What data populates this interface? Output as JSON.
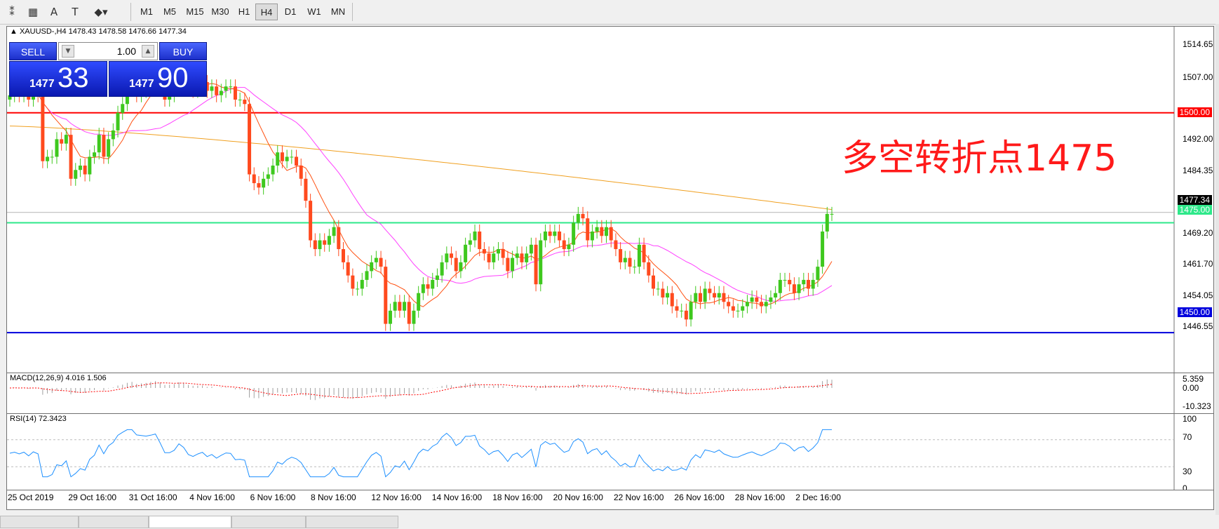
{
  "toolbar": {
    "icons": [
      "candle-chart-icon",
      "grid-icon",
      "text-icon",
      "text-label-icon",
      "shapes-menu-icon"
    ],
    "icon_glyphs": [
      "⁑",
      "▦",
      "A",
      "T",
      "◆▾"
    ],
    "timeframes": [
      "M1",
      "M5",
      "M15",
      "M30",
      "H1",
      "H4",
      "D1",
      "W1",
      "MN"
    ],
    "active_timeframe": "H4"
  },
  "chart": {
    "symbol_line": "XAUUSD-,H4  1478.43 1478.58 1476.66 1477.34",
    "annotation": "多空转折点1475",
    "annotation_color": "#ff1a1a",
    "up_color": "#3ec81e",
    "down_color": "#ff4a1e",
    "current_price_tag": "1477.34",
    "horizontal_lines": [
      {
        "price": 1500.0,
        "label": "1500.00",
        "color": "#ff0000"
      },
      {
        "price": 1475.0,
        "label": "1475.00",
        "color": "#2ee88a"
      },
      {
        "price": 1450.0,
        "label": "1450.00",
        "color": "#0000dd"
      }
    ]
  },
  "one_click": {
    "sell_label": "SELL",
    "buy_label": "BUY",
    "volume": "1.00",
    "sell_small": "1477",
    "sell_big": "33",
    "buy_small": "1477",
    "buy_big": "90"
  },
  "price_axis": [
    "1514.65",
    "1507.00",
    "1492.00",
    "1484.35",
    "1469.20",
    "1461.70",
    "1454.05",
    "1446.55"
  ],
  "macd": {
    "label": "MACD(12,26,9) 4.016 1.506",
    "axis": [
      "5.359",
      "0.00",
      "-10.323"
    ],
    "signal_color": "#ff0000",
    "histogram_color": "#a0a0a0"
  },
  "rsi": {
    "label": "RSI(14) 72.3423",
    "axis": [
      "100",
      "70",
      "30",
      "0"
    ],
    "line_color": "#1e90ff",
    "levels": [
      70,
      30
    ]
  },
  "time_axis": [
    "25 Oct 2019",
    "29 Oct 16:00",
    "31 Oct 16:00",
    "4 Nov 16:00",
    "6 Nov 16:00",
    "8 Nov 16:00",
    "12 Nov 16:00",
    "14 Nov 16:00",
    "18 Nov 16:00",
    "20 Nov 16:00",
    "22 Nov 16:00",
    "26 Nov 16:00",
    "28 Nov 16:00",
    "2 Dec 16:00"
  ],
  "chart_data": {
    "type": "candlestick",
    "title": "XAUUSD-,H4",
    "ylim": [
      1443,
      1518
    ],
    "candles_close": [
      1504,
      1505,
      1504,
      1505,
      1503,
      1505,
      1504,
      1489,
      1490,
      1490,
      1494,
      1493,
      1495,
      1485,
      1487,
      1488,
      1486,
      1490,
      1491,
      1495,
      1490,
      1494,
      1496,
      1500,
      1502,
      1506,
      1508,
      1504,
      1505,
      1506,
      1508,
      1510,
      1507,
      1503,
      1504,
      1506,
      1510,
      1509,
      1506,
      1505,
      1506,
      1507,
      1505,
      1506,
      1504,
      1505,
      1506,
      1506,
      1503,
      1503,
      1502,
      1486,
      1484,
      1483,
      1485,
      1486,
      1488,
      1491,
      1489,
      1490,
      1490,
      1488,
      1485,
      1480,
      1471,
      1469,
      1471,
      1470,
      1472,
      1474,
      1469,
      1466,
      1463,
      1460,
      1460,
      1462,
      1464,
      1466,
      1467,
      1465,
      1452,
      1455,
      1457,
      1455,
      1457,
      1452,
      1455,
      1459,
      1461,
      1460,
      1462,
      1463,
      1466,
      1468,
      1467,
      1464,
      1466,
      1470,
      1471,
      1473,
      1469,
      1468,
      1466,
      1468,
      1469,
      1467,
      1464,
      1467,
      1468,
      1466,
      1468,
      1470,
      1461,
      1471,
      1473,
      1472,
      1473,
      1471,
      1469,
      1470,
      1475,
      1477,
      1476,
      1471,
      1473,
      1474,
      1472,
      1474,
      1471,
      1469,
      1466,
      1467,
      1465,
      1465,
      1470,
      1466,
      1463,
      1460,
      1460,
      1458,
      1459,
      1456,
      1455,
      1455,
      1453,
      1457,
      1459,
      1457,
      1460,
      1459,
      1458,
      1459,
      1457,
      1456,
      1455,
      1455,
      1456,
      1457,
      1458,
      1457,
      1456,
      1457,
      1458,
      1459,
      1462,
      1462,
      1461,
      1459,
      1461,
      1462,
      1460,
      1462,
      1465,
      1473,
      1477,
      1477
    ]
  }
}
